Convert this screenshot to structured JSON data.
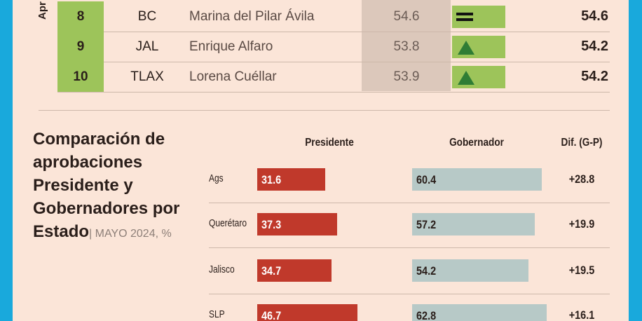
{
  "ranking": {
    "side_label": "Apr",
    "rows": [
      {
        "rank": 8,
        "state": "BC",
        "name": "Marina del Pilar Ávila",
        "previous": 54.6,
        "current": 54.6
      },
      {
        "rank": 9,
        "state": "JAL",
        "name": "Enrique Alfaro",
        "previous": 53.8,
        "current": 54.2
      },
      {
        "rank": 10,
        "state": "TLAX",
        "name": "Lorena Cuéllar",
        "previous": 53.9,
        "current": 54.2
      }
    ]
  },
  "comparison": {
    "title": "Comparación de aprobaciones Presidente y Gobernadores por Estado",
    "subtitle": "| MAYO 2024, %",
    "headers": [
      "Presidente",
      "Gobernador",
      "Dif. (G-P)"
    ],
    "president_color": "#c0392b",
    "governor_color": "#b7c9c7",
    "rows": [
      {
        "state": "Ags",
        "president": 31.6,
        "governor": 60.4,
        "difference": "+28.8"
      },
      {
        "state": "Querétaro",
        "president": 37.3,
        "governor": 57.2,
        "difference": "+19.9"
      },
      {
        "state": "Jalisco",
        "president": 34.7,
        "governor": 54.2,
        "difference": "+19.5"
      },
      {
        "state": "SLP",
        "president": 46.7,
        "governor": 62.8,
        "difference": "+16.1"
      }
    ]
  }
}
